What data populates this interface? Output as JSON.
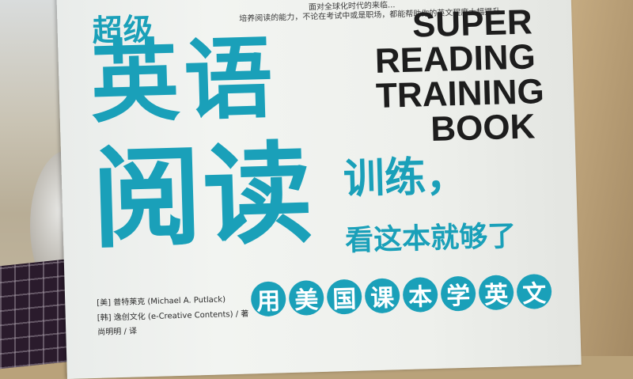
{
  "cover": {
    "blurb_line1": "面对全球化时代的来临...",
    "blurb_line2": "培养阅读的能力，不论在考试中或是职场，都能帮助你的英文程度大幅提升。",
    "title_cn_chao": "超级",
    "title_cn_yingyu": "英语",
    "title_cn_yuedu": "阅读",
    "title_cn_xunlian": "训练，",
    "title_cn_kanzhe": "看这本就够了",
    "title_en": [
      "SUPER",
      "READING",
      "TRAINING",
      "BOOK"
    ],
    "subtitle_chars": [
      "用",
      "美",
      "国",
      "课",
      "本",
      "学",
      "英",
      "文"
    ],
    "credit_author": "[美] 普特莱克 (Michael A. Putlack)",
    "credit_coauthor": "[韩] 逸创文化 (e-Creative Contents) / 著",
    "credit_translator": "尚明明 / 译",
    "accent_color": "#1aa0b9"
  }
}
